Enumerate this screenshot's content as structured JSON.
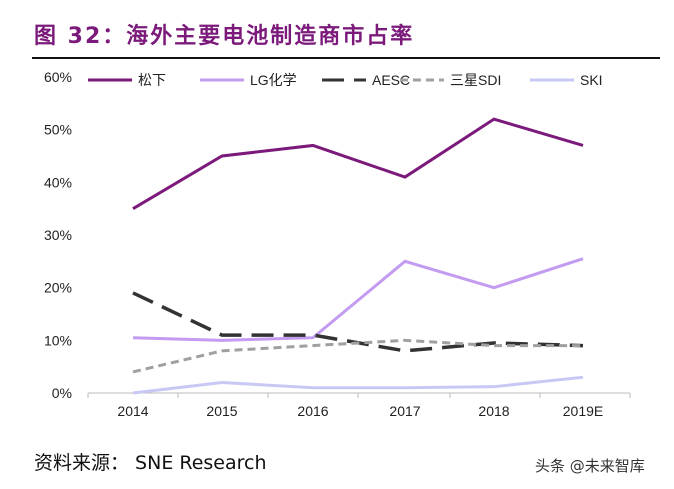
{
  "title": "图 32：海外主要电池制造商市占率",
  "source": "资料来源： SNE Research",
  "watermark": "头条 @未来智库",
  "chart_data": {
    "type": "line",
    "categories": [
      "2014",
      "2015",
      "2016",
      "2017",
      "2018",
      "2019E"
    ],
    "ylim": [
      0,
      60
    ],
    "yticks": [
      "0%",
      "10%",
      "20%",
      "30%",
      "40%",
      "50%",
      "60%"
    ],
    "legend_position": "top",
    "grid": false,
    "series": [
      {
        "name": "松下",
        "values": [
          35,
          45,
          47,
          41,
          52,
          47
        ],
        "color": "#7b1a7b",
        "dash": "none"
      },
      {
        "name": "LG化学",
        "values": [
          10.5,
          10,
          10.5,
          25,
          20,
          25.5
        ],
        "color": "#c39bf0",
        "dash": "none"
      },
      {
        "name": "AESC",
        "values": [
          19,
          11,
          11,
          8,
          9.5,
          9
        ],
        "color": "#333333",
        "dash": "long"
      },
      {
        "name": "三星SDI",
        "values": [
          4,
          8,
          9,
          10,
          9,
          9
        ],
        "color": "#a0a0a0",
        "dash": "short"
      },
      {
        "name": "SKI",
        "values": [
          0,
          2,
          1,
          1,
          1.2,
          3
        ],
        "color": "#c8c8f5",
        "dash": "none"
      }
    ]
  }
}
